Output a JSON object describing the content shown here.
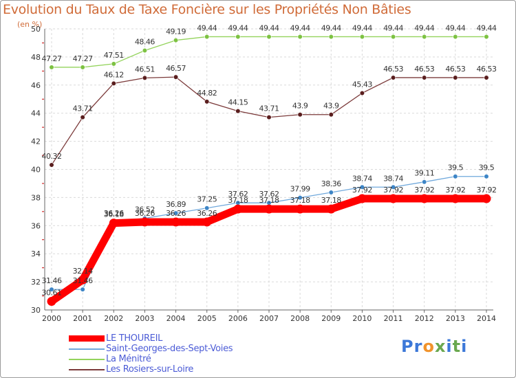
{
  "chart_data": {
    "type": "line",
    "title": "Evolution du Taux de Taxe Foncière sur les Propriétés Non Bâties",
    "unit_label": "(en %)",
    "xlabel": "",
    "ylabel": "",
    "ylim": [
      30,
      50
    ],
    "yticks": [
      30,
      32,
      34,
      36,
      38,
      40,
      42,
      44,
      46,
      48,
      50
    ],
    "grid": true,
    "x": [
      2000,
      2001,
      2002,
      2003,
      2004,
      2005,
      2006,
      2007,
      2008,
      2009,
      2010,
      2011,
      2012,
      2013,
      2014
    ],
    "series": [
      {
        "name": "LE THOUREIL",
        "color": "#ff0000",
        "values": [
          30.61,
          32.14,
          36.18,
          36.26,
          36.26,
          36.26,
          37.18,
          37.18,
          37.18,
          37.18,
          37.92,
          37.92,
          37.92,
          37.92,
          37.92
        ],
        "labels": [
          "30.61",
          "32.14",
          "36.18",
          "36.26",
          "36.26",
          "36.26",
          "37.18",
          "37.18",
          "37.18",
          "37.18",
          "37.92",
          "37.92",
          "37.92",
          "37.92",
          "37.92"
        ]
      },
      {
        "name": "Saint-Georges-des-Sept-Voies",
        "color": "#6fa8dc",
        "marker": "#3d85c6",
        "values": [
          31.46,
          31.46,
          36.26,
          36.52,
          36.89,
          37.25,
          37.62,
          37.62,
          37.99,
          38.36,
          38.74,
          38.74,
          39.11,
          39.5,
          39.5
        ],
        "labels": [
          "31.46",
          "31.46",
          "36.26",
          "36.52",
          "36.89",
          "37.25",
          "37.62",
          "37.62",
          "37.99",
          "38.36",
          "38.74",
          "38.74",
          "39.11",
          "39.5",
          "39.5"
        ]
      },
      {
        "name": "La Ménitré",
        "color": "#93d35b",
        "marker": "#7dc242",
        "values": [
          47.27,
          47.27,
          47.51,
          48.46,
          49.19,
          49.44,
          49.44,
          49.44,
          49.44,
          49.44,
          49.44,
          49.44,
          49.44,
          49.44,
          49.44
        ],
        "labels": [
          "47.27",
          "47.27",
          "47.51",
          "48.46",
          "49.19",
          "49.44",
          "49.44",
          "49.44",
          "49.44",
          "49.44",
          "49.44",
          "49.44",
          "49.44",
          "49.44",
          "49.44"
        ]
      },
      {
        "name": "Les Rosiers-sur-Loire",
        "color": "#7b3a3a",
        "marker": "#5a1e1e",
        "values": [
          40.32,
          43.71,
          46.12,
          46.51,
          46.57,
          44.82,
          44.15,
          43.71,
          43.9,
          43.9,
          45.43,
          46.53,
          46.53,
          46.53,
          46.53
        ],
        "labels": [
          "40.32",
          "43.71",
          "46.12",
          "46.51",
          "46.57",
          "44.82",
          "44.15",
          "43.71",
          "43.9",
          "43.9",
          "45.43",
          "46.53",
          "46.53",
          "46.53",
          "46.53"
        ]
      }
    ]
  },
  "legend": [
    {
      "label": "LE THOUREIL",
      "color": "#ff0000"
    },
    {
      "label": "Saint-Georges-des-Sept-Voies",
      "color": "#6fa8dc"
    },
    {
      "label": "La Ménitré",
      "color": "#93d35b"
    },
    {
      "label": "Les Rosiers-sur-Loire",
      "color": "#7b3a3a"
    }
  ],
  "logo": {
    "letters": [
      "P",
      "r",
      "o",
      "x",
      "i",
      "t",
      "i"
    ],
    "colors": [
      "#3c78d8",
      "#3c78d8",
      "#f1932b",
      "#6aa84f",
      "#3c78d8",
      "#6aa84f",
      "#3c78d8"
    ]
  }
}
